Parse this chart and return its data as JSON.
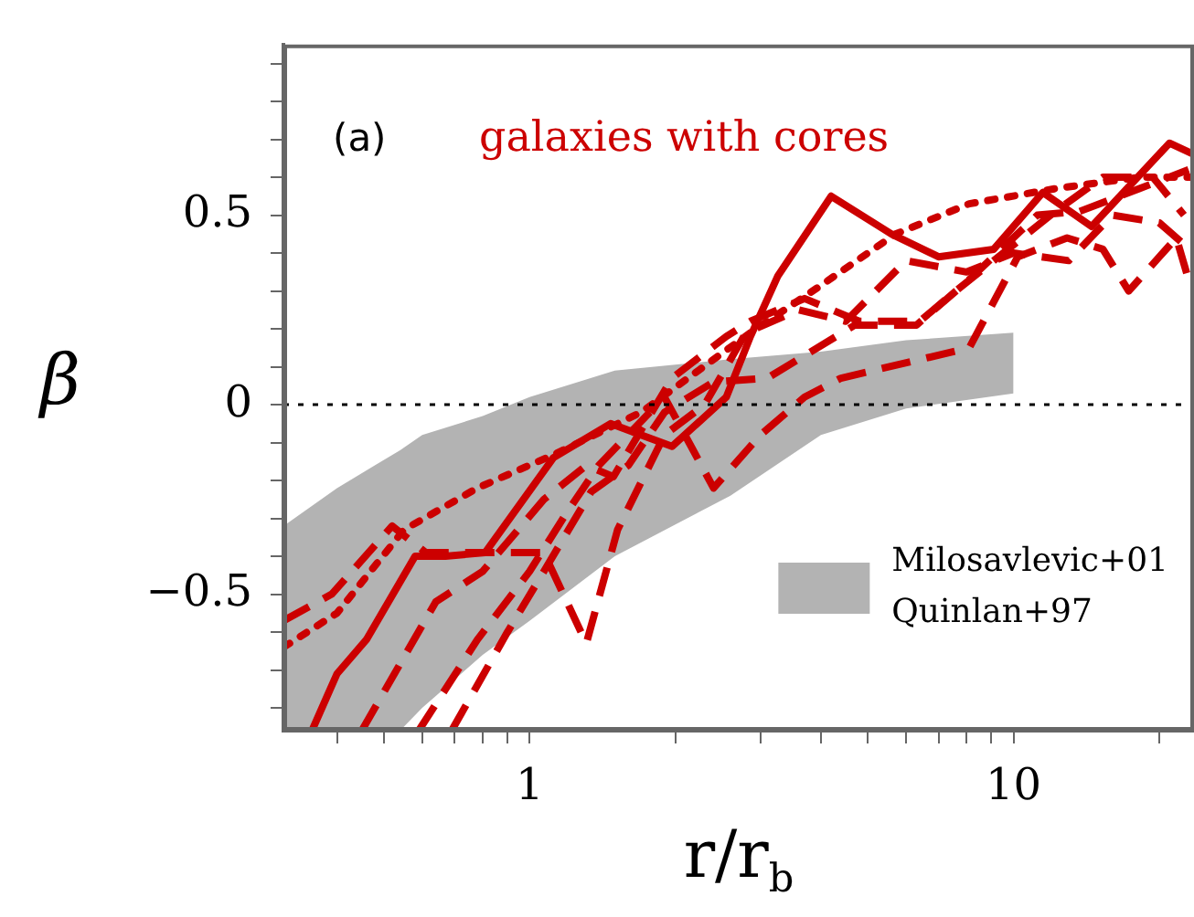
{
  "chart_data": {
    "type": "line",
    "xlabel": "r/r$_{b}$",
    "ylabel": "β",
    "log": "x",
    "xlim": [
      0.31,
      23.6
    ],
    "xticks": [
      {
        "value": 0.4,
        "label": null
      },
      {
        "value": 0.5,
        "label": null
      },
      {
        "value": 0.6,
        "label": null
      },
      {
        "value": 0.7,
        "label": null
      },
      {
        "value": 0.8,
        "label": null
      },
      {
        "value": 0.9,
        "label": null
      },
      1,
      {
        "value": 2,
        "label": null
      },
      {
        "value": 3,
        "label": null
      },
      {
        "value": 4,
        "label": null
      },
      {
        "value": 5,
        "label": null
      },
      {
        "value": 6,
        "label": null
      },
      {
        "value": 7,
        "label": null
      },
      {
        "value": 8,
        "label": null
      },
      {
        "value": 9,
        "label": null
      },
      10,
      {
        "value": 20,
        "label": null
      }
    ],
    "ylim": [
      -0.86,
      0.95
    ],
    "yticks": [
      {
        "value": -0.8,
        "label": null
      },
      {
        "value": -0.7,
        "label": null
      },
      {
        "value": -0.6,
        "label": null
      },
      {
        "value": -0.5,
        "label": "−0.5"
      },
      {
        "value": -0.4,
        "label": null
      },
      {
        "value": -0.3,
        "label": null
      },
      {
        "value": -0.2,
        "label": null
      },
      {
        "value": -0.1,
        "label": null
      },
      0,
      {
        "value": 0.1,
        "label": null
      },
      {
        "value": 0.2,
        "label": null
      },
      {
        "value": 0.3,
        "label": null
      },
      {
        "value": 0.4,
        "label": null
      },
      0.5,
      {
        "value": 0.6,
        "label": null
      },
      {
        "value": 0.7,
        "label": null
      },
      {
        "value": 0.8,
        "label": null
      },
      {
        "value": 0.9,
        "label": null
      }
    ],
    "grid": false,
    "legend": "bottom right",
    "marker": "none",
    "ref_lines": [
      {
        "axis": "y",
        "value": 0,
        "color": "#000000",
        "line_style": "dotted"
      }
    ],
    "annotations": [
      "(a)",
      "galaxies with cores"
    ],
    "series": [
      {
        "name": "Milosavlevic+01\nQuinlan+97",
        "type": "area",
        "color": "#b3b3b3",
        "x": [
          0.31,
          0.4,
          0.54,
          0.6,
          0.8,
          1,
          1.5,
          2.6,
          4,
          6,
          10
        ],
        "values": [
          null,
          null,
          null,
          null,
          null,
          null,
          null,
          null,
          null,
          null,
          null
        ],
        "lower": [
          -0.86,
          -0.86,
          -0.86,
          -0.8,
          -0.66,
          -0.57,
          -0.4,
          -0.24,
          -0.08,
          -0.01,
          0.03
        ],
        "upper": [
          -0.32,
          -0.22,
          -0.12,
          -0.08,
          -0.03,
          0.02,
          0.09,
          0.12,
          0.14,
          0.17,
          0.19
        ]
      },
      {
        "color": "#cc0000",
        "line_style": "solid",
        "x": [
          0.355,
          0.4,
          0.46,
          0.58,
          0.67,
          0.81,
          1.12,
          1.47,
          1.7,
          1.97,
          2.55,
          2.86,
          3.26,
          4.2,
          5.6,
          7.0,
          9.1,
          11.5,
          14.5,
          21,
          23.6
        ],
        "values": [
          -0.86,
          -0.71,
          -0.62,
          -0.4,
          -0.4,
          -0.39,
          -0.14,
          -0.05,
          -0.08,
          -0.11,
          0.02,
          0.18,
          0.34,
          0.55,
          0.45,
          0.39,
          0.41,
          0.56,
          0.47,
          0.69,
          0.66
        ]
      },
      {
        "color": "#cc0000",
        "line_style": "dotted",
        "x": [
          0.31,
          0.4,
          0.55,
          0.78,
          1.13,
          1.7,
          2.86,
          3.95,
          5.7,
          8.1,
          12.2,
          18.2,
          23.6
        ],
        "values": [
          -0.64,
          -0.55,
          -0.33,
          -0.22,
          -0.13,
          -0.02,
          0.19,
          0.31,
          0.45,
          0.53,
          0.57,
          0.6,
          0.6
        ]
      },
      {
        "color": "#cc0000",
        "line_style": "dashed",
        "x": [
          0.31,
          0.39,
          0.52,
          0.61,
          0.8,
          1.07,
          1.31,
          1.52,
          1.9,
          2.3,
          2.8,
          3.6,
          4.5,
          6,
          8,
          10,
          13,
          16,
          20,
          23.6
        ],
        "values": [
          -0.57,
          -0.5,
          -0.32,
          -0.39,
          -0.39,
          -0.39,
          -0.63,
          -0.33,
          -0.08,
          0,
          0.19,
          0.25,
          0.22,
          0.38,
          0.35,
          0.4,
          0.38,
          0.5,
          0.48,
          0.4
        ]
      },
      {
        "color": "#cc0000",
        "line_style": "dashed",
        "x": [
          0.45,
          0.64,
          0.8,
          1.07,
          1.31,
          1.49,
          1.97,
          2.55,
          2.86,
          3.7,
          4.8,
          6.4,
          7.6,
          12.2,
          15.3,
          19.4,
          22.5
        ],
        "values": [
          -0.86,
          -0.52,
          -0.44,
          -0.25,
          -0.16,
          -0.19,
          0.07,
          0.18,
          0.22,
          0.28,
          0.22,
          0.22,
          0.3,
          0.51,
          0.6,
          0.6,
          0.5
        ]
      },
      {
        "color": "#cc0000",
        "line_style": "dashed",
        "x": [
          0.59,
          0.78,
          1.0,
          1.2,
          1.39,
          1.9,
          2.4,
          3.0,
          3.7,
          4.4,
          8.1,
          10.2,
          12.9,
          15.3,
          17.3,
          21.7,
          23
        ],
        "values": [
          -0.86,
          -0.62,
          -0.44,
          -0.28,
          -0.16,
          0.02,
          -0.22,
          -0.08,
          0.02,
          0.07,
          0.15,
          0.39,
          0.44,
          0.41,
          0.3,
          0.44,
          0.33
        ]
      },
      {
        "color": "#cc0000",
        "line_style": "dashed",
        "x": [
          0.69,
          0.9,
          1.07,
          1.34,
          1.6,
          1.9,
          2.4,
          3.1,
          4.7,
          6.3,
          8.1,
          11.2,
          13.7,
          18.2,
          23
        ],
        "values": [
          -0.86,
          -0.6,
          -0.44,
          -0.23,
          -0.16,
          -0.02,
          0.06,
          0.07,
          0.21,
          0.21,
          0.33,
          0.5,
          0.51,
          0.57,
          0.62
        ]
      }
    ]
  }
}
